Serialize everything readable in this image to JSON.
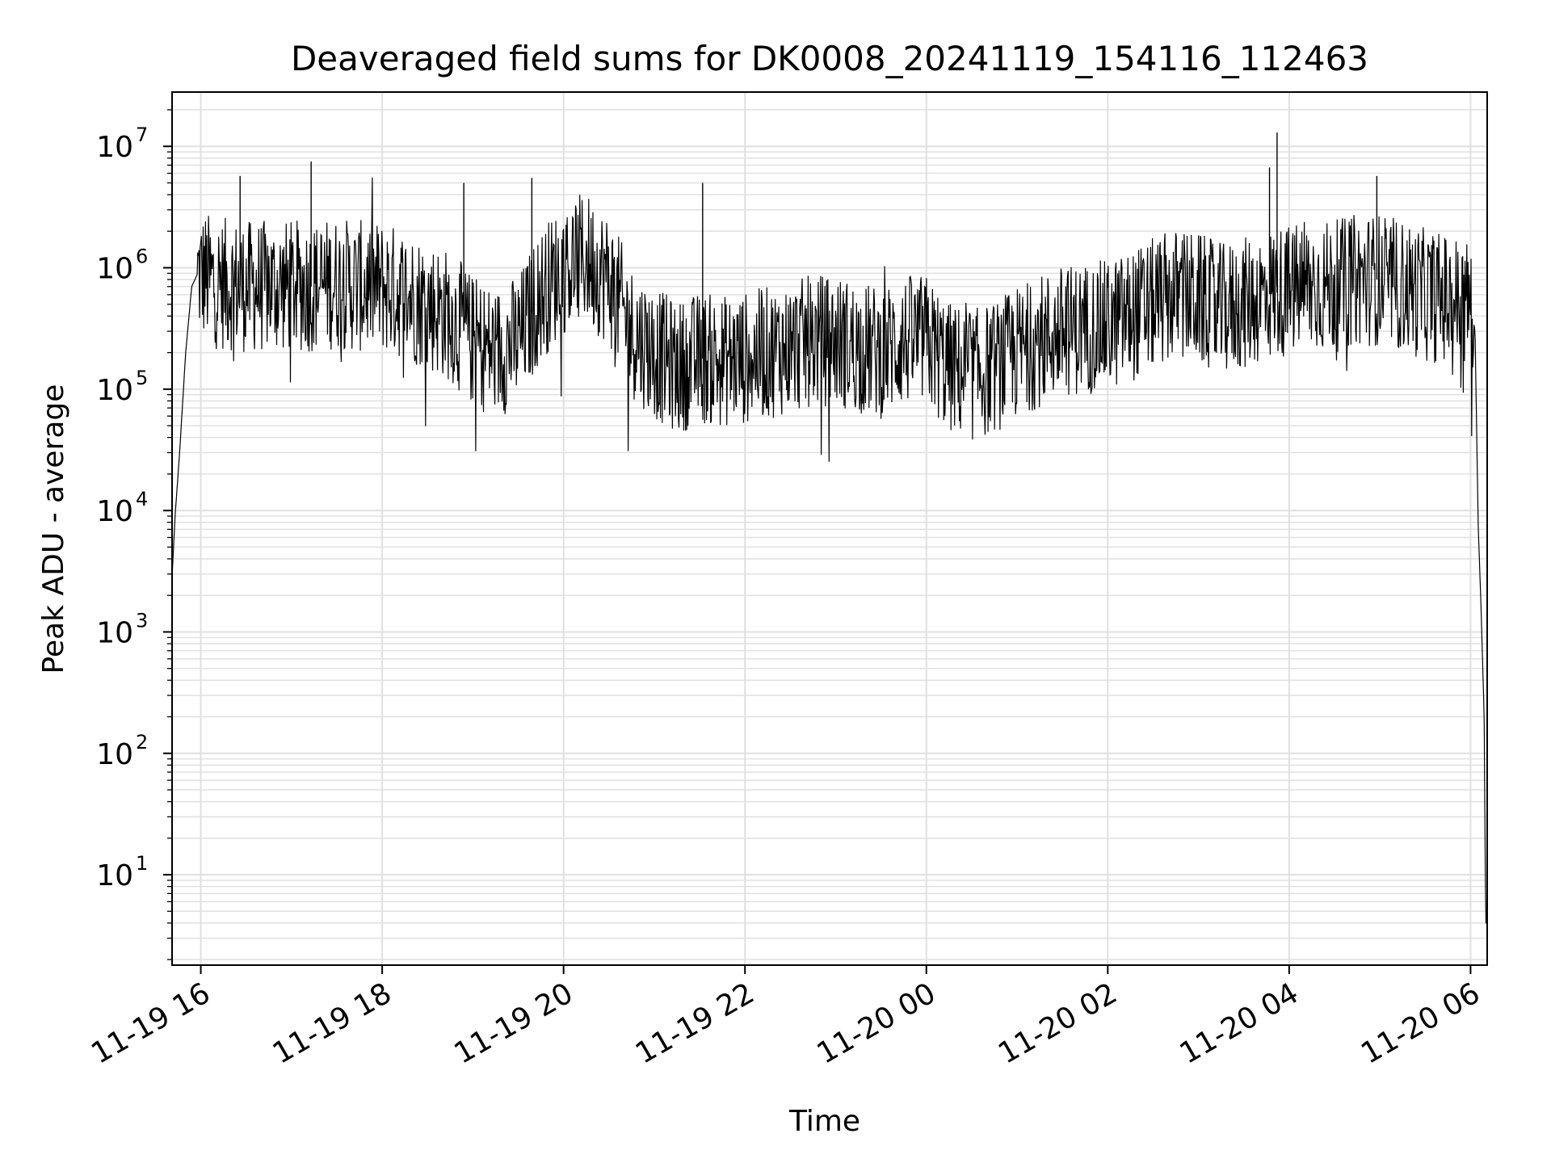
{
  "chart_data": {
    "type": "line",
    "title": "Deaveraged field sums for DK0008_20241119_154116_112463",
    "xlabel": "Time",
    "ylabel": "Peak ADU - average",
    "yscale": "log",
    "ylim": [
      1.8,
      28000000
    ],
    "xlim": [
      "2024-11-19 15:41",
      "2024-11-20 06:11"
    ],
    "grid": true,
    "line_color": "#000000",
    "grid_color": "#e0e0e0",
    "x_ticks": [
      "11-19 16",
      "11-19 18",
      "11-19 20",
      "11-19 22",
      "11-20 00",
      "11-20 02",
      "11-20 04",
      "11-20 06"
    ],
    "x_tick_times": [
      "2024-11-19 16:00",
      "2024-11-19 18:00",
      "2024-11-19 20:00",
      "2024-11-19 22:00",
      "2024-11-20 00:00",
      "2024-11-20 02:00",
      "2024-11-20 04:00",
      "2024-11-20 06:00"
    ],
    "y_ticks": [
      {
        "base": "10",
        "exp": "1",
        "value": 10
      },
      {
        "base": "10",
        "exp": "2",
        "value": 100
      },
      {
        "base": "10",
        "exp": "3",
        "value": 1000
      },
      {
        "base": "10",
        "exp": "4",
        "value": 10000
      },
      {
        "base": "10",
        "exp": "5",
        "value": 100000
      },
      {
        "base": "10",
        "exp": "6",
        "value": 1000000
      },
      {
        "base": "10",
        "exp": "7",
        "value": 10000000
      }
    ],
    "series": [
      {
        "x": [
          "2024-11-19 15:41",
          "2024-11-19 15:43",
          "2024-11-19 15:46",
          "2024-11-19 15:50",
          "2024-11-19 15:54",
          "2024-11-19 15:58",
          "2024-11-19 16:10",
          "2024-11-19 16:30",
          "2024-11-19 16:45",
          "2024-11-19 17:00",
          "2024-11-19 17:15",
          "2024-11-19 17:30",
          "2024-11-19 17:45",
          "2024-11-19 18:00",
          "2024-11-19 18:15",
          "2024-11-19 18:30",
          "2024-11-19 18:45",
          "2024-11-19 19:00",
          "2024-11-19 19:15",
          "2024-11-19 19:30",
          "2024-11-19 19:45",
          "2024-11-19 20:00",
          "2024-11-19 20:15",
          "2024-11-19 20:30",
          "2024-11-19 20:45",
          "2024-11-19 21:00",
          "2024-11-19 21:15",
          "2024-11-19 21:30",
          "2024-11-19 21:45",
          "2024-11-19 22:00",
          "2024-11-19 22:15",
          "2024-11-19 22:30",
          "2024-11-19 22:45",
          "2024-11-19 23:00",
          "2024-11-19 23:15",
          "2024-11-19 23:30",
          "2024-11-19 23:45",
          "2024-11-20 00:00",
          "2024-11-20 00:15",
          "2024-11-20 00:30",
          "2024-11-20 00:45",
          "2024-11-20 01:00",
          "2024-11-20 01:15",
          "2024-11-20 01:30",
          "2024-11-20 01:45",
          "2024-11-20 02:00",
          "2024-11-20 02:15",
          "2024-11-20 02:30",
          "2024-11-20 02:45",
          "2024-11-20 03:00",
          "2024-11-20 03:15",
          "2024-11-20 03:30",
          "2024-11-20 03:45",
          "2024-11-20 04:00",
          "2024-11-20 04:15",
          "2024-11-20 04:30",
          "2024-11-20 04:45",
          "2024-11-20 05:00",
          "2024-11-20 05:15",
          "2024-11-20 05:30",
          "2024-11-20 05:45",
          "2024-11-20 06:00",
          "2024-11-20 06:03",
          "2024-11-20 06:05",
          "2024-11-20 06:07",
          "2024-11-20 06:09",
          "2024-11-20 06:10",
          "2024-11-20 06:11"
        ],
        "y": [
          2800,
          9000,
          30000,
          200000,
          700000,
          900000,
          750000,
          700000,
          700000,
          700000,
          700000,
          750000,
          700000,
          700000,
          600000,
          500000,
          400000,
          250000,
          200000,
          250000,
          600000,
          1000000,
          1200000,
          800000,
          300000,
          200000,
          150000,
          180000,
          170000,
          180000,
          200000,
          220000,
          250000,
          250000,
          220000,
          200000,
          250000,
          250000,
          150000,
          130000,
          150000,
          200000,
          250000,
          300000,
          320000,
          330000,
          400000,
          500000,
          600000,
          550000,
          450000,
          500000,
          600000,
          650000,
          700000,
          700000,
          800000,
          800000,
          700000,
          600000,
          550000,
          500000,
          300000,
          8000,
          1500,
          200,
          4,
          4
        ],
        "spikes": [
          {
            "x": "2024-11-19 16:26",
            "y": 5700000
          },
          {
            "x": "2024-11-19 17:13",
            "y": 7500000
          },
          {
            "x": "2024-11-19 18:54",
            "y": 5000000
          },
          {
            "x": "2024-11-19 19:39",
            "y": 5500000
          },
          {
            "x": "2024-11-19 21:32",
            "y": 5000000
          },
          {
            "x": "2024-11-20 03:47",
            "y": 6700000
          },
          {
            "x": "2024-11-20 03:52",
            "y": 13000000
          },
          {
            "x": "2024-11-20 04:58",
            "y": 5700000
          }
        ]
      }
    ]
  }
}
